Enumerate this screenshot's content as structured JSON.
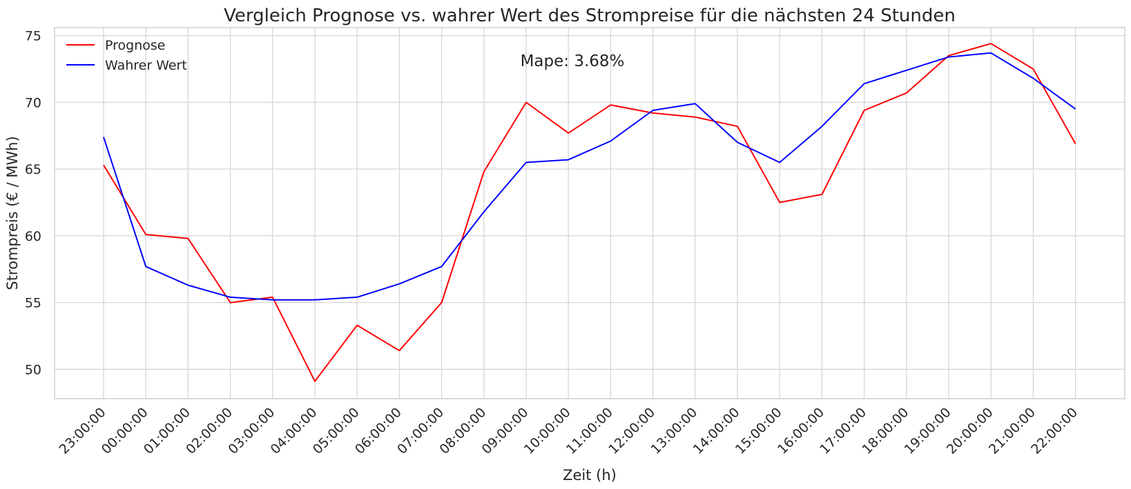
{
  "chart_data": {
    "type": "line",
    "title": "Vergleich Prognose vs. wahrer Wert des Strompreise für die nächsten 24 Stunden",
    "xlabel": "Zeit (h)",
    "ylabel": "Strompreis (€ / MWh)",
    "annotation": "Mape: 3.68%",
    "ylim": [
      47.8,
      75.6
    ],
    "yticks": [
      50,
      55,
      60,
      65,
      70,
      75
    ],
    "grid": true,
    "legend_position": "top-left",
    "categories": [
      "23:00:00",
      "00:00:00",
      "01:00:00",
      "02:00:00",
      "03:00:00",
      "04:00:00",
      "05:00:00",
      "06:00:00",
      "07:00:00",
      "08:00:00",
      "09:00:00",
      "10:00:00",
      "11:00:00",
      "12:00:00",
      "13:00:00",
      "14:00:00",
      "15:00:00",
      "16:00:00",
      "17:00:00",
      "18:00:00",
      "19:00:00",
      "20:00:00",
      "21:00:00",
      "22:00:00"
    ],
    "series": [
      {
        "name": "Prognose",
        "color": "#ff0000",
        "values": [
          65.3,
          60.1,
          59.8,
          55.0,
          55.4,
          49.1,
          53.3,
          51.4,
          55.0,
          64.8,
          70.0,
          67.7,
          69.8,
          69.2,
          68.9,
          68.2,
          62.5,
          63.1,
          69.4,
          70.7,
          73.5,
          74.4,
          72.5,
          66.9
        ]
      },
      {
        "name": "Wahrer Wert",
        "color": "#0000ff",
        "values": [
          67.4,
          57.7,
          56.3,
          55.4,
          55.2,
          55.2,
          55.4,
          56.4,
          57.7,
          61.8,
          65.5,
          65.7,
          67.1,
          69.4,
          69.9,
          67.0,
          65.5,
          68.2,
          71.4,
          72.4,
          73.4,
          73.7,
          71.8,
          69.5
        ]
      }
    ]
  }
}
